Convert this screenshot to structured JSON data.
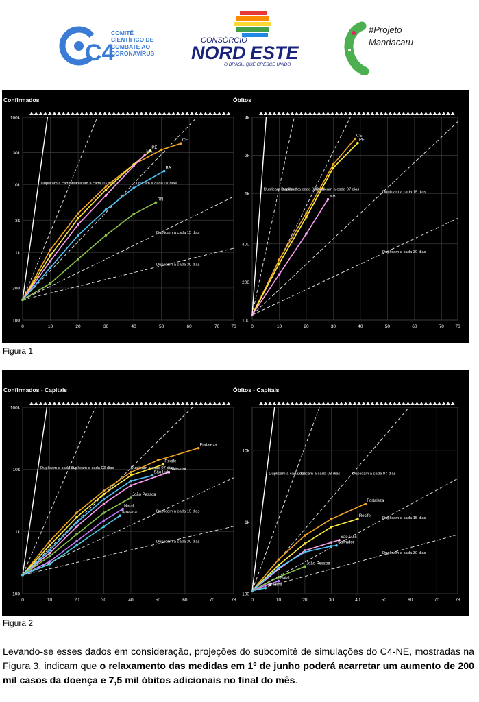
{
  "logos": {
    "c4": {
      "mark": "C4",
      "text_lines": [
        "COMITÊ",
        "CIENTÍFICO DE",
        "COMBATE AO",
        "CORONAVÍRUS"
      ]
    },
    "consorcio": {
      "top": "CONSÓRCIO",
      "main_a": "NORD",
      "main_b": "ESTE",
      "tagline": "O BRASIL QUE CRESCE UNIDO"
    },
    "mandacaru": {
      "line1": "#Projeto",
      "line2": "Mandacaru"
    }
  },
  "figure1": {
    "caption": "Figura 1",
    "left_title": "Confirmados",
    "right_title": "Óbitos"
  },
  "figure2": {
    "caption": "Figura 2",
    "left_title": "Confirmados - Capitais",
    "right_title": "Óbitos - Capitais"
  },
  "paragraph": {
    "part1": "Levando-se esses dados em consideração, projeções do subcomitê de simulações do C4-NE, mostradas na Figura 3, indicam que ",
    "bold": "o relaxamento das medidas em 1º de junho poderá acarretar um aumento de 200 mil casos da doença e 7,5 mil óbitos adicionais no final do mês",
    "part2": "."
  },
  "colors": {
    "background": "#000000",
    "grid": "#3a3a3a",
    "text": "#ffffff",
    "series": [
      "#f5a623",
      "#ffeb3b",
      "#ff9ff3",
      "#4fc3f7",
      "#8bc34a",
      "#c77dff",
      "#4dd0e1",
      "#ff7043",
      "#5c6bc0",
      "#26a69a"
    ]
  },
  "chart_data": [
    {
      "type": "line",
      "title": "Confirmados",
      "x_ticks": [
        "0",
        "10",
        "20",
        "30",
        "40",
        "50",
        "60",
        "70",
        "76"
      ],
      "y_ticks": [
        "100",
        "300",
        "1k",
        "3k",
        "10k",
        "30k",
        "100k"
      ],
      "xlim": [
        0,
        76
      ],
      "y_scale": "log",
      "ylim": [
        100,
        100000
      ],
      "guides": [
        "Duplicam a cada dia",
        "Duplicam a cada 03 dias",
        "Duplicam a cada 07 dias",
        "Duplicam a cada 15 dias",
        "Duplicam a cada 30 dias"
      ],
      "labels": [
        "CE",
        "PE",
        "MA",
        "BA",
        "RN"
      ],
      "series": [
        {
          "name": "CE",
          "x": [
            0,
            10,
            20,
            30,
            40,
            50,
            57
          ],
          "y": [
            200,
            1100,
            3800,
            9500,
            20000,
            33000,
            41000
          ]
        },
        {
          "name": "PE",
          "x": [
            0,
            10,
            20,
            30,
            40,
            46
          ],
          "y": [
            200,
            900,
            3200,
            8500,
            20000,
            32000
          ]
        },
        {
          "name": "MA",
          "x": [
            0,
            10,
            20,
            30,
            40,
            44
          ],
          "y": [
            200,
            750,
            2600,
            7000,
            19000,
            28000
          ]
        },
        {
          "name": "BA",
          "x": [
            0,
            10,
            20,
            30,
            40,
            51
          ],
          "y": [
            200,
            600,
            1800,
            4300,
            9000,
            16000
          ]
        },
        {
          "name": "RN",
          "x": [
            0,
            10,
            20,
            30,
            40,
            48
          ],
          "y": [
            200,
            350,
            800,
            1800,
            3700,
            5500
          ]
        }
      ]
    },
    {
      "type": "line",
      "title": "Óbitos",
      "x_ticks": [
        "0",
        "10",
        "20",
        "30",
        "40",
        "50",
        "60",
        "70",
        "76"
      ],
      "y_ticks": [
        "100",
        "200",
        "400",
        "1k",
        "2k",
        "4k"
      ],
      "xlim": [
        0,
        76
      ],
      "y_scale": "log",
      "ylim": [
        100,
        4000
      ],
      "guides": [
        "Duplicam a cada dia",
        "Duplicam a cada 03 dias",
        "Duplicam a cada 07 dias",
        "Duplicam a cada 15 dias",
        "Duplicam a cada 30 dias"
      ],
      "labels": [
        "CE",
        "PE",
        "MA"
      ],
      "series": [
        {
          "name": "CE",
          "x": [
            0,
            10,
            20,
            30,
            38
          ],
          "y": [
            110,
            300,
            700,
            1700,
            2700
          ]
        },
        {
          "name": "PE",
          "x": [
            0,
            10,
            20,
            30,
            39
          ],
          "y": [
            110,
            280,
            650,
            1600,
            2500
          ]
        },
        {
          "name": "MA",
          "x": [
            0,
            10,
            20,
            28
          ],
          "y": [
            110,
            230,
            480,
            900
          ]
        }
      ]
    },
    {
      "type": "line",
      "title": "Confirmados - Capitais",
      "x_ticks": [
        "0",
        "10",
        "20",
        "30",
        "40",
        "50",
        "60",
        "70",
        "78"
      ],
      "y_ticks": [
        "100",
        "1k",
        "10k",
        "100k"
      ],
      "xlim": [
        0,
        78
      ],
      "y_scale": "log",
      "ylim": [
        100,
        100000
      ],
      "guides": [
        "Duplicam a cada dia",
        "Duplicam a cada 03 dias",
        "Duplicam a cada 07 dias",
        "Duplicam a cada 15 dias",
        "Duplicam a cada 30 dias"
      ],
      "labels": [
        "Fortaleza",
        "Recife",
        "Salvador",
        "São Luís",
        "João Pessoa",
        "Natal",
        "Teresina"
      ],
      "series": [
        {
          "name": "Fortaleza",
          "x": [
            0,
            10,
            20,
            30,
            40,
            50,
            65
          ],
          "y": [
            200,
            700,
            2000,
            4500,
            9000,
            14000,
            22000
          ]
        },
        {
          "name": "Recife",
          "x": [
            0,
            10,
            20,
            30,
            40,
            52
          ],
          "y": [
            200,
            600,
            1700,
            4000,
            8000,
            12000
          ]
        },
        {
          "name": "Salvador",
          "x": [
            0,
            10,
            20,
            30,
            40,
            54
          ],
          "y": [
            200,
            450,
            1200,
            2800,
            5500,
            9000
          ]
        },
        {
          "name": "São Luís",
          "x": [
            0,
            10,
            20,
            30,
            40,
            48
          ],
          "y": [
            200,
            500,
            1400,
            3300,
            6500,
            8000
          ]
        },
        {
          "name": "João Pessoa",
          "x": [
            0,
            10,
            20,
            30,
            40
          ],
          "y": [
            200,
            400,
            900,
            2000,
            3500
          ]
        },
        {
          "name": "Natal",
          "x": [
            0,
            10,
            20,
            30,
            37
          ],
          "y": [
            200,
            330,
            700,
            1500,
            2300
          ]
        },
        {
          "name": "Teresina",
          "x": [
            0,
            10,
            20,
            30,
            36
          ],
          "y": [
            200,
            300,
            600,
            1200,
            1800
          ]
        }
      ]
    },
    {
      "type": "line",
      "title": "Óbitos - Capitais",
      "x_ticks": [
        "0",
        "10",
        "20",
        "30",
        "40",
        "50",
        "60",
        "70",
        "78"
      ],
      "y_ticks": [
        "100",
        "1k",
        "10k"
      ],
      "xlim": [
        0,
        78
      ],
      "y_scale": "log",
      "ylim": [
        100,
        40000
      ],
      "guides": [
        "Duplicam a cada dia",
        "Duplicam a cada 03 dias",
        "Duplicam a cada 07 dias",
        "Duplicam a cada 15 dias",
        "Duplicam a cada 30 dias"
      ],
      "labels": [
        "Fortaleza",
        "Recife",
        "São Luís",
        "Salvador",
        "João Pessoa",
        "Natal",
        "Teresina"
      ],
      "series": [
        {
          "name": "Fortaleza",
          "x": [
            0,
            10,
            20,
            30,
            43
          ],
          "y": [
            110,
            300,
            650,
            1100,
            1800
          ]
        },
        {
          "name": "Recife",
          "x": [
            0,
            10,
            20,
            30,
            40
          ],
          "y": [
            110,
            250,
            500,
            850,
            1100
          ]
        },
        {
          "name": "São Luís",
          "x": [
            0,
            10,
            20,
            30,
            33
          ],
          "y": [
            110,
            220,
            400,
            520,
            560
          ]
        },
        {
          "name": "Salvador",
          "x": [
            0,
            10,
            20,
            30,
            32
          ],
          "y": [
            110,
            230,
            380,
            460,
            470
          ]
        },
        {
          "name": "João Pessoa",
          "x": [
            0,
            10,
            20
          ],
          "y": [
            110,
            170,
            240
          ]
        },
        {
          "name": "Natal",
          "x": [
            0,
            5,
            10
          ],
          "y": [
            110,
            130,
            150
          ]
        },
        {
          "name": "Teresina",
          "x": [
            0,
            5
          ],
          "y": [
            110,
            120
          ]
        }
      ]
    }
  ]
}
